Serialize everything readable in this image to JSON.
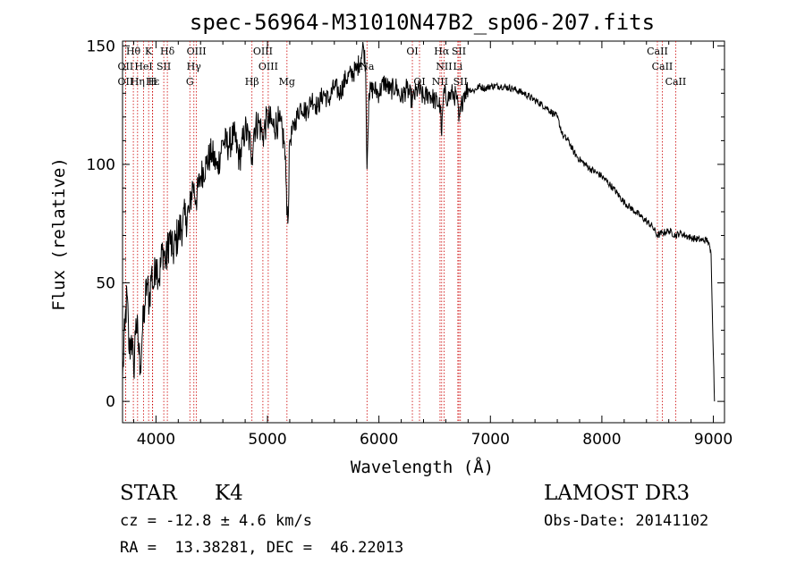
{
  "chart_data": {
    "type": "line",
    "title": "spec-56964-M31010N47B2_sp06-207.fits",
    "xlabel": "Wavelength (Å)",
    "ylabel": "Flux (relative)",
    "xlim": [
      3700,
      9100
    ],
    "ylim": [
      -9,
      152
    ],
    "xticks": [
      4000,
      5000,
      6000,
      7000,
      8000,
      9000
    ],
    "yticks": [
      0,
      50,
      100,
      150
    ],
    "series": [
      {
        "name": "spectrum",
        "x": [
          3700,
          3720,
          3740,
          3760,
          3780,
          3800,
          3820,
          3840,
          3860,
          3880,
          3900,
          3920,
          3940,
          3960,
          3980,
          4000,
          4030,
          4060,
          4090,
          4120,
          4150,
          4180,
          4210,
          4240,
          4270,
          4300,
          4330,
          4360,
          4400,
          4450,
          4500,
          4550,
          4600,
          4650,
          4700,
          4750,
          4800,
          4850,
          4861,
          4880,
          4920,
          4960,
          5000,
          5050,
          5100,
          5150,
          5170,
          5183,
          5200,
          5250,
          5300,
          5350,
          5400,
          5450,
          5500,
          5550,
          5600,
          5650,
          5700,
          5750,
          5800,
          5840,
          5860,
          5880,
          5893,
          5910,
          5950,
          6000,
          6050,
          6100,
          6150,
          6200,
          6250,
          6300,
          6350,
          6400,
          6450,
          6500,
          6550,
          6563,
          6580,
          6620,
          6660,
          6700,
          6717,
          6731,
          6760,
          6800,
          6850,
          6900,
          6950,
          7000,
          7100,
          7200,
          7300,
          7400,
          7500,
          7600,
          7650,
          7700,
          7750,
          7800,
          7900,
          8000,
          8100,
          8200,
          8300,
          8400,
          8450,
          8498,
          8542,
          8600,
          8662,
          8700,
          8800,
          8900,
          8950,
          8980,
          9000,
          9010
        ],
        "values": [
          10,
          30,
          45,
          20,
          28,
          12,
          35,
          25,
          15,
          30,
          40,
          50,
          42,
          55,
          48,
          60,
          52,
          65,
          58,
          70,
          62,
          68,
          72,
          75,
          78,
          80,
          92,
          85,
          95,
          100,
          105,
          98,
          110,
          108,
          112,
          102,
          115,
          108,
          103,
          115,
          118,
          112,
          120,
          116,
          118,
          110,
          90,
          75,
          110,
          118,
          125,
          122,
          128,
          124,
          130,
          127,
          133,
          130,
          136,
          138,
          140,
          145,
          150,
          142,
          98,
          130,
          132,
          130,
          135,
          131,
          133,
          128,
          132,
          127,
          132,
          128,
          130,
          127,
          125,
          112,
          130,
          128,
          130,
          128,
          118,
          122,
          130,
          132,
          131,
          133,
          132,
          133,
          133,
          132,
          130,
          127,
          124,
          120,
          112,
          110,
          105,
          102,
          98,
          95,
          90,
          84,
          80,
          76,
          74,
          70,
          71,
          72,
          70,
          71,
          69,
          68,
          68,
          62,
          20,
          0
        ]
      }
    ],
    "lines": [
      {
        "label": "Hθ",
        "x": 3797,
        "row": 0
      },
      {
        "label": "K",
        "x": 3934,
        "row": 0
      },
      {
        "label": "Hδ",
        "x": 4102,
        "row": 0
      },
      {
        "label": "OIII",
        "x": 4363,
        "row": 0
      },
      {
        "label": "OIII",
        "x": 4959,
        "row": 0
      },
      {
        "label": "OI",
        "x": 6300,
        "row": 0
      },
      {
        "label": "Hα",
        "x": 6563,
        "row": 0
      },
      {
        "label": "SII",
        "x": 6717,
        "row": 0
      },
      {
        "label": "CaII",
        "x": 8498,
        "row": 0
      },
      {
        "label": "OII",
        "x": 3727,
        "row": 1
      },
      {
        "label": "HeI",
        "x": 3889,
        "row": 1
      },
      {
        "label": "SII",
        "x": 4070,
        "row": 1
      },
      {
        "label": "Hγ",
        "x": 4340,
        "row": 1
      },
      {
        "label": "OIII",
        "x": 5007,
        "row": 1
      },
      {
        "label": "Na",
        "x": 5893,
        "row": 1
      },
      {
        "label": "NII",
        "x": 6584,
        "row": 1
      },
      {
        "label": "Li",
        "x": 6708,
        "row": 1
      },
      {
        "label": "CaII",
        "x": 8542,
        "row": 1
      },
      {
        "label": "OII",
        "x": 3727,
        "row": 2
      },
      {
        "label": "Hε",
        "x": 3970,
        "row": 2
      },
      {
        "label": "Hη",
        "x": 3835,
        "row": 2
      },
      {
        "label": "H",
        "x": 3968,
        "row": 2
      },
      {
        "label": "G",
        "x": 4304,
        "row": 2
      },
      {
        "label": "Hβ",
        "x": 4861,
        "row": 2
      },
      {
        "label": "Mg",
        "x": 5175,
        "row": 2
      },
      {
        "label": "OI",
        "x": 6364,
        "row": 2
      },
      {
        "label": "NII",
        "x": 6548,
        "row": 2
      },
      {
        "label": "SII",
        "x": 6731,
        "row": 2
      },
      {
        "label": "CaII",
        "x": 8662,
        "row": 2
      }
    ],
    "line_color": "#cc0000"
  },
  "info": {
    "object_class": "STAR",
    "subclass": "K4",
    "survey": "LAMOST DR3",
    "redshift": "cz = -12.8 ± 4.6 km/s",
    "obs_date": "Obs-Date: 20141102",
    "coords": "RA =  13.38281, DEC =  46.22013"
  }
}
